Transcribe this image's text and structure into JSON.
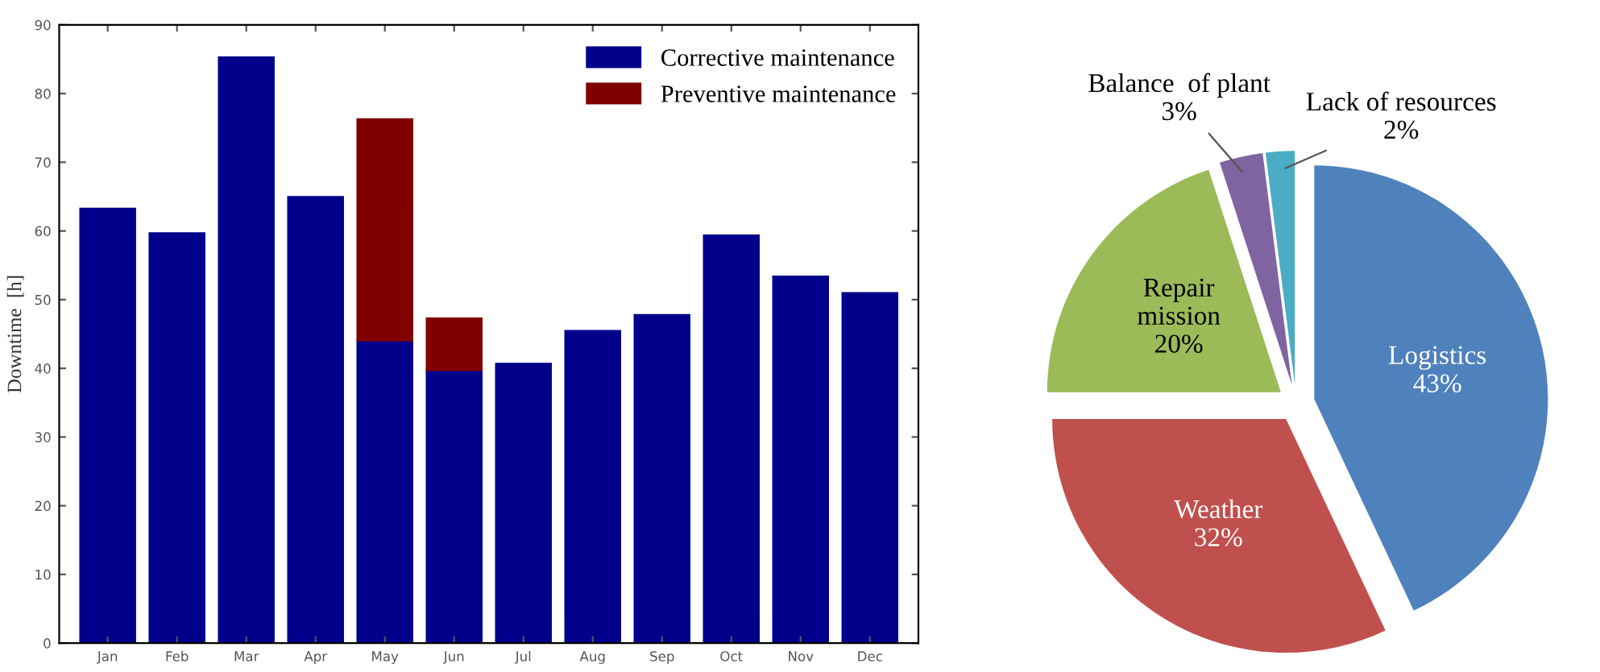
{
  "chart_data": [
    {
      "type": "bar",
      "ylabel": "Downtime  [h]",
      "stacked": true,
      "legend": "top right",
      "grid": false,
      "categories": [
        "Jan",
        "Feb",
        "Mar",
        "Apr",
        "May",
        "Jun",
        "Jul",
        "Aug",
        "Sep",
        "Oct",
        "Nov",
        "Dec"
      ],
      "ylim": [
        0,
        90
      ],
      "yticks": [
        0,
        10,
        20,
        30,
        40,
        50,
        60,
        70,
        80,
        90
      ],
      "series": [
        {
          "name": "Corrective maintenance",
          "color": "#00008b",
          "values": [
            63.3,
            59.7,
            85.3,
            65,
            44,
            39.7,
            40.7,
            45.5,
            47.8,
            59.4,
            53.4,
            51
          ]
        },
        {
          "name": "Preventive maintenance",
          "color": "#800000",
          "values": [
            null,
            null,
            null,
            null,
            32.3,
            7.6,
            null,
            null,
            null,
            null,
            null,
            null
          ]
        }
      ]
    },
    {
      "type": "pie",
      "categories": [
        "Logistics",
        "Weather",
        "Repair mission",
        "Balance  of plant",
        "Lack of resources"
      ],
      "values": [
        43,
        32,
        20,
        3,
        2
      ],
      "value_labels": [
        "43%",
        "32%",
        "20%",
        "3%",
        "2%"
      ],
      "colors": [
        "#4f81bd",
        "#c0504d",
        "#9bbb59",
        "#8064a2",
        "#4bacc6"
      ]
    }
  ]
}
